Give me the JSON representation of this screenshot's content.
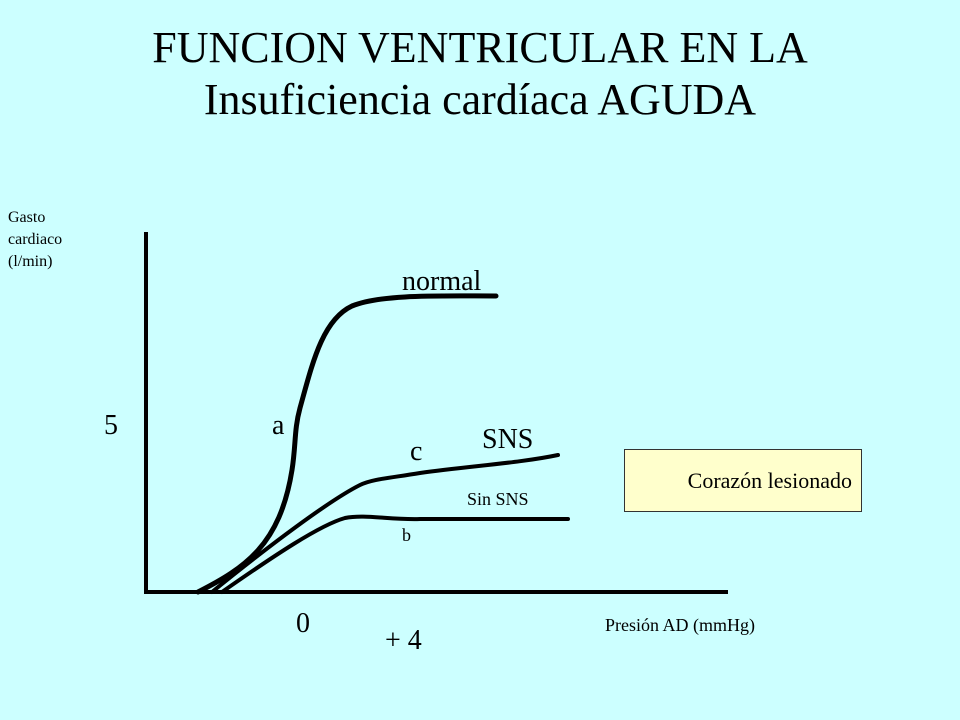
{
  "title": {
    "line1": "FUNCION VENTRICULAR EN LA",
    "line2": "Insuficiencia cardíaca AGUDA"
  },
  "y_axis": {
    "label_lines": [
      "Gasto",
      "cardiaco",
      "(l/min)"
    ],
    "tick_label": "5"
  },
  "x_axis": {
    "label": "Presión AD (mmHg)",
    "tick_zero": "0",
    "tick_plus4": "+ 4"
  },
  "curves": {
    "normal_label": "normal",
    "point_a": "a",
    "point_c": "c",
    "sns_label": "SNS",
    "sin_sns_label": "Sin SNS",
    "point_b": "b"
  },
  "legend_box": {
    "text": "Corazón lesionado",
    "fill": "#ffffcc"
  },
  "colors": {
    "background": "#ccffff",
    "lines": "#000000"
  }
}
